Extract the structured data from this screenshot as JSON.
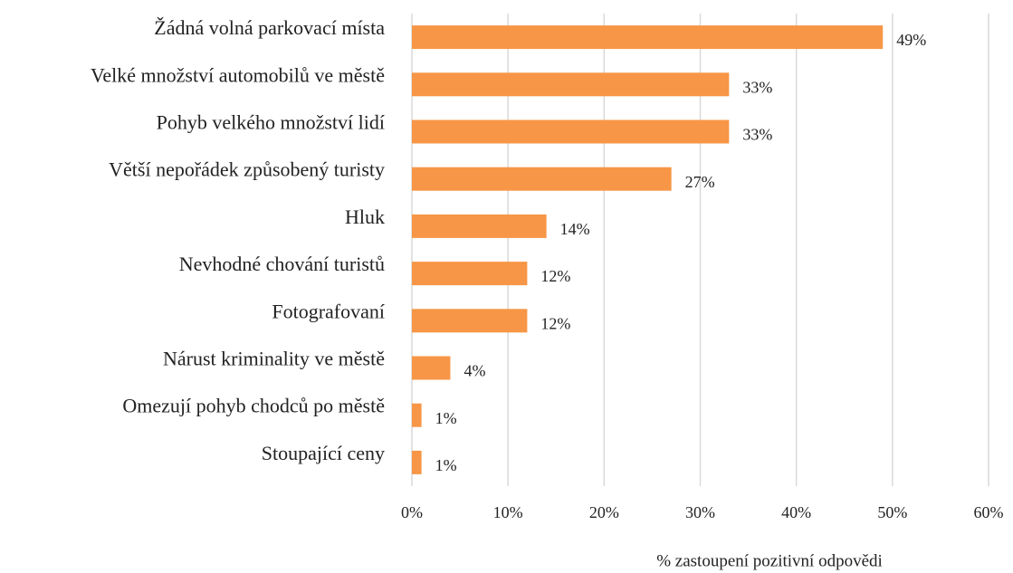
{
  "chart_data": {
    "type": "bar",
    "orientation": "horizontal",
    "categories": [
      "Žádná volná parkovací místa",
      "Velké množství automobilů ve městě",
      "Pohyb velkého množství lidí",
      "Větší nepořádek způsobený turisty",
      "Hluk",
      "Nevhodné chování turistů",
      "Fotografovaní",
      "Nárust kriminality ve městě",
      "Omezují pohyb chodců po městě",
      "Stoupající ceny"
    ],
    "values": [
      49,
      33,
      33,
      27,
      14,
      12,
      12,
      4,
      1,
      1
    ],
    "value_labels": [
      "49%",
      "33%",
      "33%",
      "27%",
      "14%",
      "12%",
      "12%",
      "4%",
      "1%",
      "1%"
    ],
    "color": "#f79646",
    "xlim": [
      0,
      60
    ],
    "xticks": [
      {
        "value": 0,
        "label": "0%"
      },
      {
        "value": 10,
        "label": "10%"
      },
      {
        "value": 20,
        "label": "20%"
      },
      {
        "value": 30,
        "label": "30%"
      },
      {
        "value": 40,
        "label": "40%"
      },
      {
        "value": 50,
        "label": "50%"
      },
      {
        "value": 60,
        "label": "60%"
      }
    ],
    "x_label": "% zastoupení pozitivní odpovědi",
    "grid": true
  }
}
